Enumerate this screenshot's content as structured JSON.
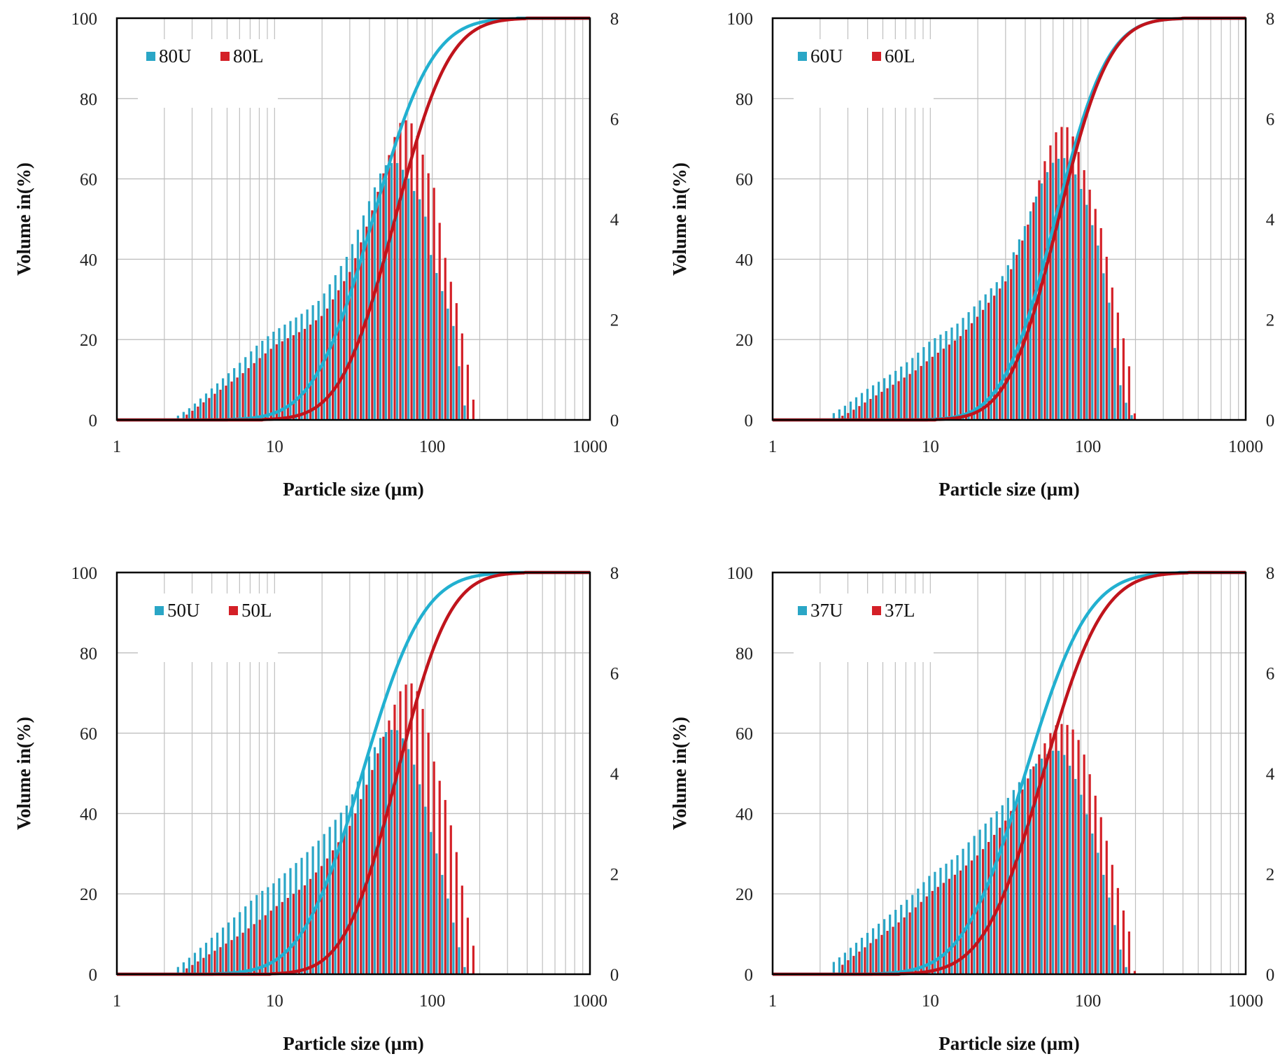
{
  "colors": {
    "u": "#2aa6c6",
    "l": "#d42027",
    "grid": "#bfbfbf",
    "frame": "#000000",
    "u_line": "#22b0d0",
    "l_line": "#c0141c"
  },
  "charts": [
    {
      "type": "bar+line",
      "xlabel": "Particle size (µm)",
      "ylabel": "Volume in(%)",
      "x_scale": "log",
      "xlim": [
        1,
        1000
      ],
      "ylim_left": [
        0,
        100
      ],
      "ylim_right": [
        0,
        8
      ],
      "x_ticks": [
        1,
        10,
        100,
        1000
      ],
      "y_ticks_left": [
        0,
        20,
        40,
        60,
        80,
        100
      ],
      "y_ticks_right": [
        0,
        2,
        4,
        6,
        8
      ],
      "grid": true,
      "legend": "top-left",
      "series": [
        {
          "name": "80U",
          "color_key": "u",
          "cum_d50": 42,
          "cum_sigma": 0.68,
          "bar_points": [
            [
              2.4,
              0.05
            ],
            [
              3,
              0.25
            ],
            [
              4,
              0.6
            ],
            [
              6,
              1.1
            ],
            [
              8,
              1.5
            ],
            [
              10,
              1.75
            ],
            [
              15,
              2.1
            ],
            [
              20,
              2.4
            ],
            [
              30,
              3.3
            ],
            [
              40,
              4.3
            ],
            [
              50,
              5.05
            ],
            [
              60,
              5.15
            ],
            [
              70,
              4.9
            ],
            [
              80,
              4.5
            ],
            [
              90,
              4.3
            ],
            [
              100,
              3.3
            ],
            [
              120,
              2.5
            ],
            [
              140,
              1.85
            ],
            [
              160,
              0.5
            ],
            [
              170,
              0
            ]
          ]
        },
        {
          "name": "80L",
          "color_key": "l",
          "cum_d50": 58,
          "cum_sigma": 0.62,
          "bar_points": [
            [
              2.5,
              0.03
            ],
            [
              3,
              0.2
            ],
            [
              4,
              0.5
            ],
            [
              6,
              0.9
            ],
            [
              8,
              1.25
            ],
            [
              10,
              1.5
            ],
            [
              15,
              1.8
            ],
            [
              20,
              2.1
            ],
            [
              30,
              3.0
            ],
            [
              40,
              4.1
            ],
            [
              50,
              5.1
            ],
            [
              60,
              5.9
            ],
            [
              70,
              6.0
            ],
            [
              80,
              5.6
            ],
            [
              90,
              5.0
            ],
            [
              100,
              4.65
            ],
            [
              120,
              3.1
            ],
            [
              140,
              2.3
            ],
            [
              160,
              1.3
            ],
            [
              175,
              0.6
            ],
            [
              185,
              0
            ]
          ]
        }
      ]
    },
    {
      "type": "bar+line",
      "xlabel": "Particle size (µm)",
      "ylabel": "Volume in(%)",
      "x_scale": "log",
      "xlim": [
        1,
        1000
      ],
      "ylim_left": [
        0,
        100
      ],
      "ylim_right": [
        0,
        8
      ],
      "x_ticks": [
        1,
        10,
        100,
        1000
      ],
      "y_ticks_left": [
        0,
        20,
        40,
        60,
        80,
        100
      ],
      "y_ticks_right": [
        0,
        2,
        4,
        6,
        8
      ],
      "grid": true,
      "legend": "top-left",
      "series": [
        {
          "name": "60U",
          "color_key": "u",
          "cum_d50": 62,
          "cum_sigma": 0.6,
          "bar_points": [
            [
              2.4,
              0.1
            ],
            [
              3,
              0.3
            ],
            [
              4,
              0.6
            ],
            [
              6,
              0.95
            ],
            [
              8,
              1.25
            ],
            [
              10,
              1.55
            ],
            [
              15,
              1.9
            ],
            [
              20,
              2.3
            ],
            [
              30,
              2.9
            ],
            [
              40,
              3.8
            ],
            [
              50,
              4.6
            ],
            [
              60,
              5.1
            ],
            [
              70,
              5.25
            ],
            [
              80,
              5.1
            ],
            [
              90,
              4.7
            ],
            [
              100,
              4.3
            ],
            [
              120,
              3.4
            ],
            [
              140,
              2.3
            ],
            [
              160,
              0.8
            ],
            [
              180,
              0.3
            ],
            [
              200,
              0
            ]
          ]
        },
        {
          "name": "60L",
          "color_key": "l",
          "cum_d50": 65,
          "cum_sigma": 0.58,
          "bar_points": [
            [
              2.5,
              0.03
            ],
            [
              3,
              0.15
            ],
            [
              4,
              0.4
            ],
            [
              6,
              0.75
            ],
            [
              8,
              1.0
            ],
            [
              10,
              1.25
            ],
            [
              15,
              1.65
            ],
            [
              20,
              2.1
            ],
            [
              30,
              2.8
            ],
            [
              40,
              3.8
            ],
            [
              50,
              5.0
            ],
            [
              60,
              5.7
            ],
            [
              70,
              5.9
            ],
            [
              80,
              5.6
            ],
            [
              90,
              5.1
            ],
            [
              100,
              4.6
            ],
            [
              120,
              3.75
            ],
            [
              140,
              2.6
            ],
            [
              160,
              1.8
            ],
            [
              180,
              1.0
            ],
            [
              190,
              0.2
            ],
            [
              200,
              0
            ]
          ]
        }
      ]
    },
    {
      "type": "bar+line",
      "xlabel": "Particle size (µm)",
      "ylabel": "Volume in(%)",
      "x_scale": "log",
      "xlim": [
        1,
        1000
      ],
      "ylim_left": [
        0,
        100
      ],
      "ylim_right": [
        0,
        8
      ],
      "x_ticks": [
        1,
        10,
        100,
        1000
      ],
      "y_ticks_left": [
        0,
        20,
        40,
        60,
        80,
        100
      ],
      "y_ticks_right": [
        0,
        2,
        4,
        6,
        8
      ],
      "grid": true,
      "legend": "top-left",
      "series": [
        {
          "name": "50U",
          "color_key": "u",
          "cum_d50": 36,
          "cum_sigma": 0.7,
          "bar_points": [
            [
              2.4,
              0.1
            ],
            [
              3,
              0.35
            ],
            [
              4,
              0.7
            ],
            [
              6,
              1.2
            ],
            [
              8,
              1.6
            ],
            [
              10,
              1.8
            ],
            [
              15,
              2.3
            ],
            [
              20,
              2.7
            ],
            [
              30,
              3.4
            ],
            [
              40,
              4.3
            ],
            [
              50,
              4.8
            ],
            [
              60,
              4.9
            ],
            [
              70,
              4.6
            ],
            [
              80,
              4.1
            ],
            [
              90,
              3.5
            ],
            [
              100,
              2.85
            ],
            [
              120,
              1.9
            ],
            [
              140,
              1.0
            ],
            [
              160,
              0.2
            ],
            [
              175,
              0
            ]
          ]
        },
        {
          "name": "50L",
          "color_key": "l",
          "cum_d50": 60,
          "cum_sigma": 0.6,
          "bar_points": [
            [
              2.5,
              0.05
            ],
            [
              3,
              0.2
            ],
            [
              4,
              0.45
            ],
            [
              6,
              0.8
            ],
            [
              8,
              1.1
            ],
            [
              10,
              1.35
            ],
            [
              15,
              1.75
            ],
            [
              20,
              2.2
            ],
            [
              30,
              3.0
            ],
            [
              40,
              4.0
            ],
            [
              50,
              4.9
            ],
            [
              60,
              5.6
            ],
            [
              70,
              5.85
            ],
            [
              80,
              5.6
            ],
            [
              90,
              5.0
            ],
            [
              100,
              4.25
            ],
            [
              120,
              3.4
            ],
            [
              140,
              2.4
            ],
            [
              160,
              1.3
            ],
            [
              180,
              0.5
            ],
            [
              190,
              0
            ]
          ]
        }
      ]
    },
    {
      "type": "bar+line",
      "xlabel": "Particle size (µm)",
      "ylabel": "Volume in(%)",
      "x_scale": "log",
      "xlim": [
        1,
        1000
      ],
      "ylim_left": [
        0,
        100
      ],
      "ylim_right": [
        0,
        8
      ],
      "x_ticks": [
        1,
        10,
        100,
        1000
      ],
      "y_ticks_left": [
        0,
        20,
        40,
        60,
        80,
        100
      ],
      "y_ticks_right": [
        0,
        2,
        4,
        6,
        8
      ],
      "grid": true,
      "legend": "top-left",
      "series": [
        {
          "name": "37U",
          "color_key": "u",
          "cum_d50": 40,
          "cum_sigma": 0.72,
          "bar_points": [
            [
              2.4,
              0.2
            ],
            [
              3,
              0.45
            ],
            [
              4,
              0.8
            ],
            [
              6,
              1.25
            ],
            [
              8,
              1.6
            ],
            [
              10,
              1.95
            ],
            [
              15,
              2.35
            ],
            [
              20,
              2.8
            ],
            [
              30,
              3.4
            ],
            [
              40,
              3.95
            ],
            [
              50,
              4.25
            ],
            [
              60,
              4.45
            ],
            [
              70,
              4.45
            ],
            [
              80,
              4.1
            ],
            [
              90,
              3.7
            ],
            [
              100,
              3.2
            ],
            [
              120,
              2.35
            ],
            [
              140,
              1.5
            ],
            [
              160,
              0.6
            ],
            [
              180,
              0.1
            ],
            [
              190,
              0
            ]
          ]
        },
        {
          "name": "37L",
          "color_key": "l",
          "cum_d50": 52,
          "cum_sigma": 0.68,
          "bar_points": [
            [
              2.5,
              0.1
            ],
            [
              3,
              0.3
            ],
            [
              4,
              0.6
            ],
            [
              6,
              1.0
            ],
            [
              8,
              1.35
            ],
            [
              10,
              1.65
            ],
            [
              15,
              2.05
            ],
            [
              20,
              2.4
            ],
            [
              30,
              3.1
            ],
            [
              40,
              3.85
            ],
            [
              50,
              4.5
            ],
            [
              60,
              4.95
            ],
            [
              70,
              5.0
            ],
            [
              80,
              4.85
            ],
            [
              90,
              4.5
            ],
            [
              100,
              4.0
            ],
            [
              120,
              3.05
            ],
            [
              140,
              2.15
            ],
            [
              160,
              1.4
            ],
            [
              180,
              0.8
            ],
            [
              190,
              0.1
            ],
            [
              200,
              0
            ]
          ]
        }
      ]
    }
  ]
}
